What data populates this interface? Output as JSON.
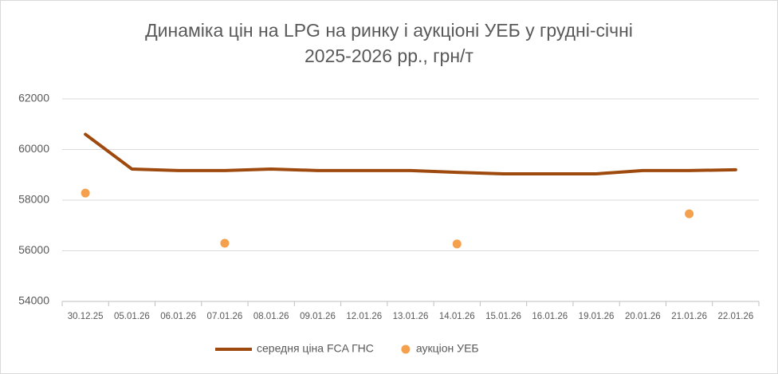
{
  "chart_data": {
    "type": "line",
    "title": [
      "Динаміка цін на LPG на ринку і аукціоні УЕБ у грудні-січні",
      "2025-2026 рр., грн/т"
    ],
    "categories": [
      "30.12.25",
      "05.01.26",
      "06.01.26",
      "07.01.26",
      "08.01.26",
      "09.01.26",
      "12.01.26",
      "13.01.26",
      "14.01.26",
      "15.01.26",
      "16.01.26",
      "19.01.26",
      "20.01.26",
      "21.01.26",
      "22.01.26"
    ],
    "series": [
      {
        "name": "середня ціна FCA ГНС",
        "type": "line",
        "color": "#9e4a0e",
        "values": [
          60600,
          59230,
          59170,
          59170,
          59230,
          59170,
          59170,
          59170,
          59100,
          59040,
          59040,
          59040,
          59170,
          59170,
          59200
        ]
      },
      {
        "name": "аукціон УЕБ",
        "type": "scatter",
        "color": "#f4a04c",
        "values": [
          58280,
          null,
          null,
          56300,
          null,
          null,
          null,
          null,
          56270,
          null,
          null,
          null,
          null,
          57460,
          null
        ]
      }
    ],
    "ylim": [
      54000,
      62000
    ],
    "yticks": [
      54000,
      56000,
      58000,
      60000,
      62000
    ],
    "grid": true,
    "legend": "bottom"
  }
}
